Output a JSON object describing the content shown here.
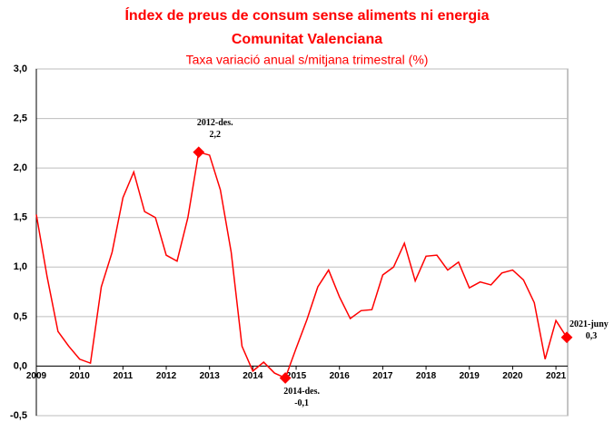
{
  "chart_data": {
    "type": "line",
    "title": "Índex de preus de consum sense aliments ni energia",
    "title_line2": "Comunitat Valenciana",
    "subtitle": "Taxa variació anual  s/mitjana trimestral (%)",
    "categories": [
      "2009",
      null,
      null,
      null,
      "2010",
      null,
      null,
      null,
      "2011",
      null,
      null,
      null,
      "2012",
      null,
      null,
      null,
      "2013",
      null,
      null,
      null,
      "2014",
      null,
      null,
      null,
      "2015",
      null,
      null,
      null,
      "2016",
      null,
      null,
      null,
      "2017",
      null,
      null,
      null,
      "2018",
      null,
      null,
      null,
      "2019",
      null,
      null,
      null,
      "2020",
      null,
      null,
      null,
      "2021",
      null
    ],
    "series": [
      {
        "color": "#ff0000",
        "values": [
          1.53,
          0.9,
          0.35,
          0.2,
          0.07,
          0.03,
          0.8,
          1.15,
          1.7,
          1.96,
          1.56,
          1.5,
          1.12,
          1.06,
          1.5,
          2.16,
          2.13,
          1.78,
          1.15,
          0.2,
          -0.05,
          0.04,
          -0.07,
          -0.12,
          0.18,
          0.47,
          0.8,
          0.97,
          0.7,
          0.48,
          0.56,
          0.57,
          0.92,
          1.0,
          1.24,
          0.86,
          1.11,
          1.12,
          0.97,
          1.05,
          0.79,
          0.85,
          0.82,
          0.94,
          0.97,
          0.87,
          0.64,
          0.07,
          0.46,
          0.29
        ]
      }
    ],
    "annotations": [
      {
        "text": "2012-des.",
        "label": "2,2",
        "point": 15
      },
      {
        "text": "2014-des.",
        "label": "-0,1",
        "point": 23
      },
      {
        "text": "2021-juny",
        "label": "0,3",
        "point": 49
      }
    ],
    "ylim": [
      -0.5,
      3.0
    ],
    "yticks": [
      {
        "value": -0.5,
        "label": "-0,5"
      },
      {
        "value": 0,
        "label": "0,0"
      },
      {
        "value": 0.5,
        "label": "0,5"
      },
      {
        "value": 1.0,
        "label": "1,0"
      },
      {
        "value": 1.5,
        "label": "1,5"
      },
      {
        "value": 2.0,
        "label": "2,0"
      },
      {
        "value": 2.5,
        "label": "2,5"
      },
      {
        "value": 3.0,
        "label": "3,0"
      }
    ],
    "grid": true
  }
}
